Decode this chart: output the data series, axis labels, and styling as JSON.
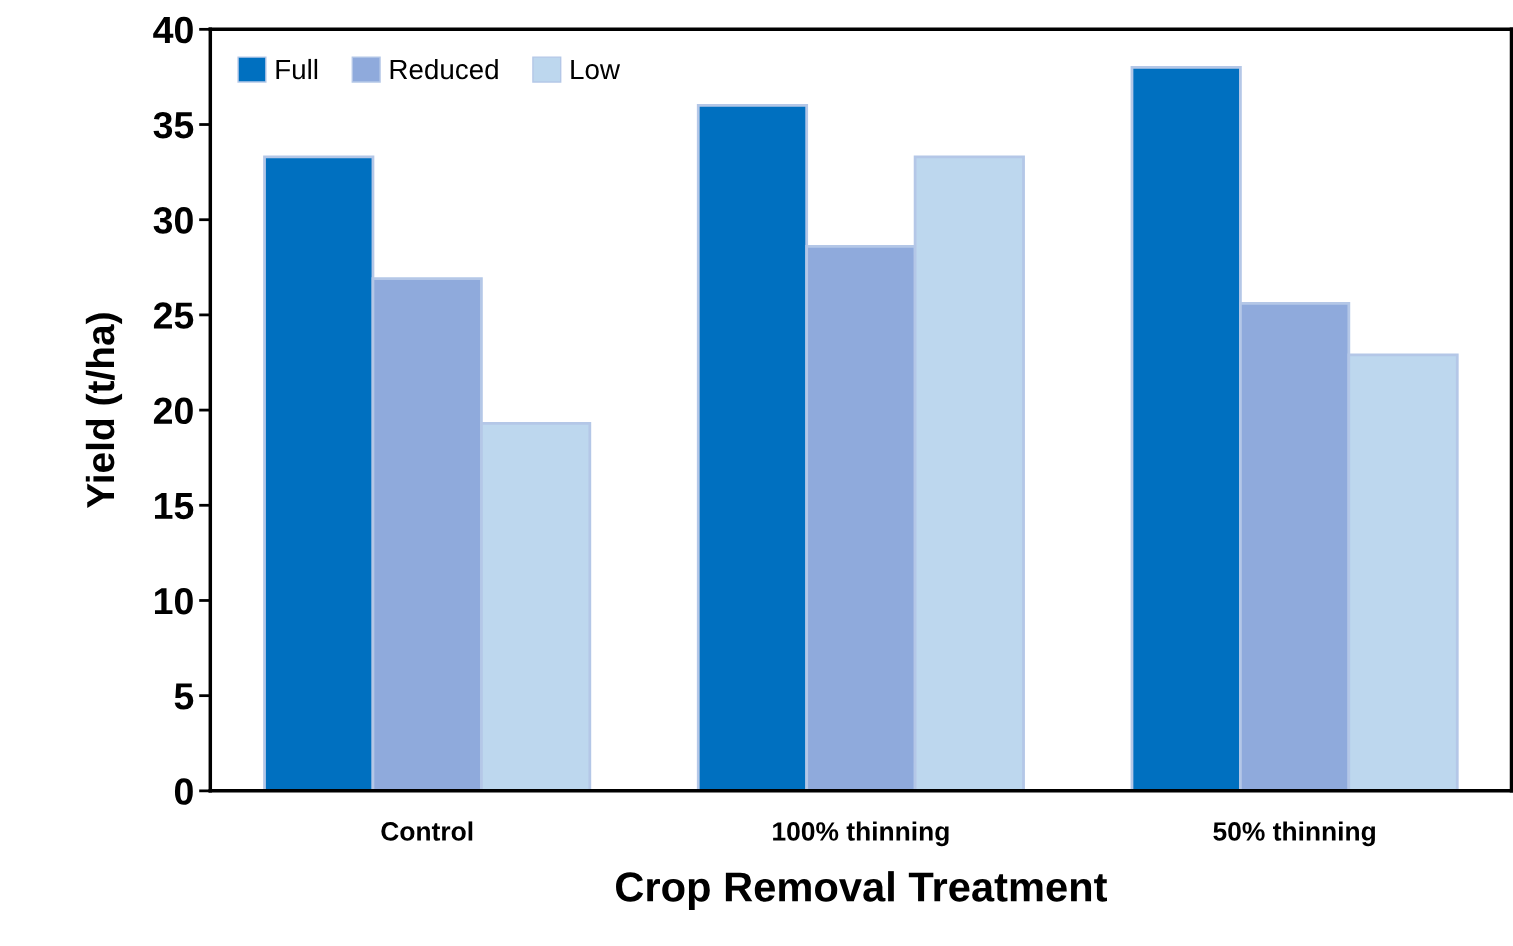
{
  "chart_data": {
    "type": "bar",
    "xlabel": "Crop Removal Treatment",
    "ylabel": "Yield (t/ha)",
    "categories": [
      "Control",
      "100% thinning",
      "50% thinning"
    ],
    "series": [
      {
        "name": "Full",
        "color": "#0070c0",
        "values": [
          33.3,
          36.0,
          38.0
        ]
      },
      {
        "name": "Reduced",
        "color": "#8faadc",
        "values": [
          26.9,
          28.6,
          25.6
        ]
      },
      {
        "name": "Low",
        "color": "#bdd7ee",
        "values": [
          19.3,
          33.3,
          22.9
        ]
      }
    ],
    "ylim": [
      0,
      40
    ],
    "yticks": [
      0,
      5,
      10,
      15,
      20,
      25,
      30,
      35,
      40
    ],
    "grid": false,
    "legend": "top left"
  }
}
